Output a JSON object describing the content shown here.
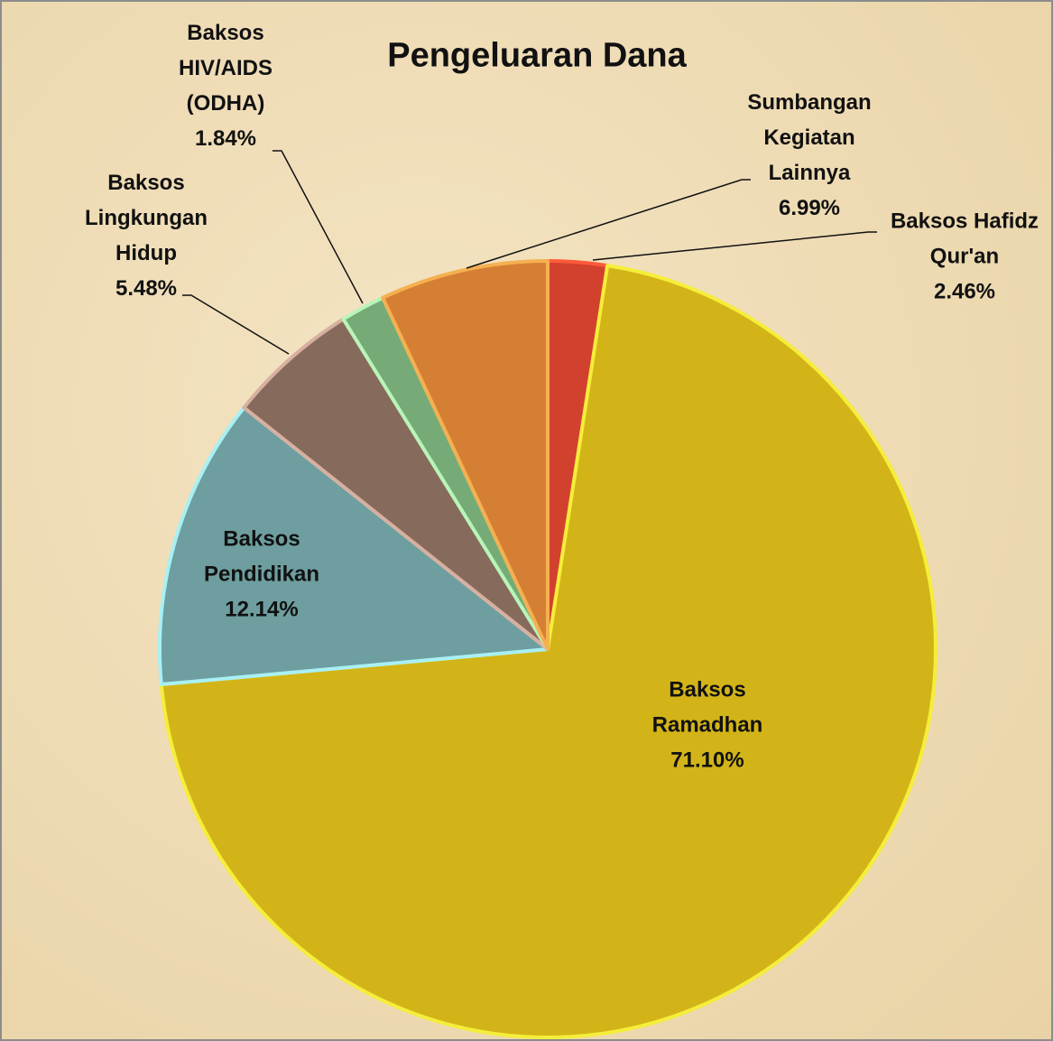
{
  "chart_data": {
    "type": "pie",
    "title": "Pengeluaran Dana",
    "categories": [
      "Baksos Hafidz Qur'an",
      "Baksos Ramadhan",
      "Baksos Pendidikan",
      "Baksos Lingkungan Hidup",
      "Baksos HIV/AIDS (ODHA)",
      "Sumbangan Kegiatan Lainnya"
    ],
    "values": [
      2.46,
      71.1,
      12.14,
      5.48,
      1.84,
      6.99
    ],
    "value_labels": [
      "2.46%",
      "71.10%",
      "12.14%",
      "5.48%",
      "1.84%",
      "6.99%"
    ],
    "colors": [
      "#d2412e",
      "#d3b418",
      "#6e9e9f",
      "#866b5c",
      "#76ab78",
      "#d57f34"
    ]
  }
}
